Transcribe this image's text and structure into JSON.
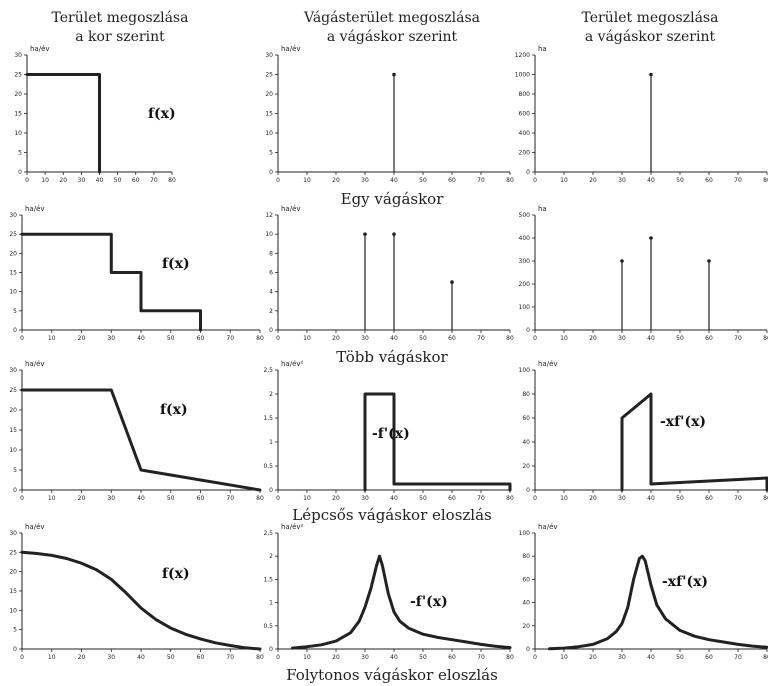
{
  "column_titles": [
    {
      "line1": "Terület megoszlása",
      "line2": "a kor szerint"
    },
    {
      "line1": "Vágásterület megoszlása",
      "line2": "a vágáskor szerint"
    },
    {
      "line1": "Terület megoszlása",
      "line2": "a vágáskor szerint"
    }
  ],
  "row_labels": [
    "Egy vágáskor",
    "Több vágáskor",
    "Lépcsős vágáskor eloszlás",
    "Folytonos vágáskor eloszlás"
  ],
  "chart_data": [
    {
      "id": "r1c1",
      "type": "line",
      "ylabel": "ha/év",
      "xlim": [
        0,
        80
      ],
      "ylim": [
        0,
        30
      ],
      "yticks": [
        0,
        5,
        10,
        15,
        20,
        25,
        30
      ],
      "xticks": [
        0,
        10,
        20,
        30,
        40,
        50,
        60,
        70,
        80
      ],
      "annotation": "f(x)",
      "x": [
        0,
        40,
        40
      ],
      "y": [
        25,
        25,
        0
      ]
    },
    {
      "id": "r1c2",
      "type": "stem",
      "ylabel": "ha/év",
      "xlim": [
        0,
        80
      ],
      "ylim": [
        0,
        30
      ],
      "yticks": [
        0,
        5,
        10,
        15,
        20,
        25,
        30
      ],
      "xticks": [
        0,
        10,
        20,
        30,
        40,
        50,
        60,
        70,
        80
      ],
      "x": [
        40
      ],
      "y": [
        25
      ]
    },
    {
      "id": "r1c3",
      "type": "stem",
      "ylabel": "ha",
      "xlim": [
        0,
        80
      ],
      "ylim": [
        0,
        1200
      ],
      "yticks": [
        0,
        200,
        400,
        600,
        800,
        1000,
        1200
      ],
      "xticks": [
        0,
        10,
        20,
        30,
        40,
        50,
        60,
        70,
        80
      ],
      "x": [
        40
      ],
      "y": [
        1000
      ]
    },
    {
      "id": "r2c1",
      "type": "line",
      "ylabel": "ha/év",
      "xlim": [
        0,
        80
      ],
      "ylim": [
        0,
        30
      ],
      "yticks": [
        0,
        5,
        10,
        15,
        20,
        25,
        30
      ],
      "xticks": [
        0,
        10,
        20,
        30,
        40,
        50,
        60,
        70,
        80
      ],
      "annotation": "f(x)",
      "x": [
        0,
        30,
        30,
        40,
        40,
        60,
        60
      ],
      "y": [
        25,
        25,
        15,
        15,
        5,
        5,
        0
      ]
    },
    {
      "id": "r2c2",
      "type": "stem",
      "ylabel": "ha/év",
      "xlim": [
        0,
        80
      ],
      "ylim": [
        0,
        12
      ],
      "yticks": [
        0,
        2,
        4,
        6,
        8,
        10,
        12
      ],
      "xticks": [
        0,
        10,
        20,
        30,
        40,
        50,
        60,
        70,
        80
      ],
      "x": [
        30,
        40,
        60
      ],
      "y": [
        10,
        10,
        5
      ]
    },
    {
      "id": "r2c3",
      "type": "stem",
      "ylabel": "ha",
      "xlim": [
        0,
        80
      ],
      "ylim": [
        0,
        500
      ],
      "yticks": [
        0,
        100,
        200,
        300,
        400,
        500
      ],
      "xticks": [
        0,
        10,
        20,
        30,
        40,
        50,
        60,
        70,
        80
      ],
      "x": [
        30,
        40,
        60
      ],
      "y": [
        300,
        400,
        300
      ]
    },
    {
      "id": "r3c1",
      "type": "line",
      "ylabel": "ha/év",
      "xlim": [
        0,
        80
      ],
      "ylim": [
        0,
        30
      ],
      "yticks": [
        0,
        5,
        10,
        15,
        20,
        25,
        30
      ],
      "xticks": [
        0,
        10,
        20,
        30,
        40,
        50,
        60,
        70,
        80
      ],
      "annotation": "f(x)",
      "x": [
        0,
        30,
        40,
        80
      ],
      "y": [
        25,
        25,
        5,
        0
      ]
    },
    {
      "id": "r3c2",
      "type": "line",
      "ylabel": "ha/év²",
      "xlim": [
        0,
        80
      ],
      "ylim": [
        0,
        2.5
      ],
      "yticks": [
        0,
        0.5,
        1,
        1.5,
        2,
        2.5
      ],
      "ytick_labels": [
        "0",
        "0,5",
        "1",
        "1,5",
        "2",
        "2,5"
      ],
      "xticks": [
        0,
        10,
        20,
        30,
        40,
        50,
        60,
        70,
        80
      ],
      "annotation": "-f'(x)",
      "x": [
        30,
        30,
        40,
        40,
        80,
        80
      ],
      "y": [
        0,
        2,
        2,
        0.125,
        0.125,
        0
      ]
    },
    {
      "id": "r3c3",
      "type": "line",
      "ylabel": "ha/év",
      "xlim": [
        0,
        80
      ],
      "ylim": [
        0,
        100
      ],
      "yticks": [
        0,
        20,
        40,
        60,
        80,
        100
      ],
      "xticks": [
        0,
        10,
        20,
        30,
        40,
        50,
        60,
        70,
        80
      ],
      "annotation": "-xf'(x)",
      "x": [
        30,
        30,
        40,
        40,
        80,
        80
      ],
      "y": [
        0,
        60,
        80,
        5,
        10,
        0
      ]
    },
    {
      "id": "r4c1",
      "type": "line",
      "ylabel": "ha/év",
      "xlim": [
        0,
        80
      ],
      "ylim": [
        0,
        30
      ],
      "yticks": [
        0,
        5,
        10,
        15,
        20,
        25,
        30
      ],
      "xticks": [
        0,
        10,
        20,
        30,
        40,
        50,
        60,
        70,
        80
      ],
      "annotation": "f(x)",
      "x": [
        0,
        5,
        10,
        15,
        20,
        25,
        30,
        35,
        40,
        45,
        50,
        55,
        60,
        65,
        70,
        75,
        80
      ],
      "y": [
        25,
        24.7,
        24.2,
        23.4,
        22.2,
        20.5,
        18,
        14.5,
        10.6,
        7.6,
        5.4,
        3.8,
        2.6,
        1.6,
        0.9,
        0.3,
        0
      ]
    },
    {
      "id": "r4c2",
      "type": "line",
      "ylabel": "ha/év²",
      "xlim": [
        0,
        80
      ],
      "ylim": [
        0,
        2.5
      ],
      "yticks": [
        0,
        0.5,
        1,
        1.5,
        2,
        2.5
      ],
      "ytick_labels": [
        "0",
        "0,5",
        "1",
        "1,5",
        "2",
        "2,5"
      ],
      "xticks": [
        0,
        10,
        20,
        30,
        40,
        50,
        60,
        70,
        80
      ],
      "annotation": "-f'(x)",
      "x": [
        5,
        10,
        15,
        20,
        25,
        28,
        30,
        32,
        34,
        35,
        36,
        38,
        40,
        42,
        45,
        50,
        55,
        60,
        65,
        70,
        75,
        80
      ],
      "y": [
        0.02,
        0.05,
        0.09,
        0.17,
        0.35,
        0.6,
        0.9,
        1.3,
        1.8,
        2,
        1.8,
        1.2,
        0.8,
        0.6,
        0.45,
        0.32,
        0.25,
        0.2,
        0.15,
        0.1,
        0.06,
        0.03
      ]
    },
    {
      "id": "r4c3",
      "type": "line",
      "ylabel": "ha/év",
      "xlim": [
        0,
        80
      ],
      "ylim": [
        0,
        100
      ],
      "yticks": [
        0,
        20,
        40,
        60,
        80,
        100
      ],
      "xticks": [
        0,
        10,
        20,
        30,
        40,
        50,
        60,
        70,
        80
      ],
      "annotation": "-xf'(x)",
      "x": [
        5,
        10,
        15,
        20,
        25,
        28,
        30,
        32,
        34,
        36,
        37,
        38,
        40,
        42,
        45,
        50,
        55,
        60,
        65,
        70,
        75,
        80
      ],
      "y": [
        0.2,
        0.8,
        2,
        4,
        9,
        15,
        22,
        36,
        60,
        78,
        80,
        76,
        55,
        38,
        26,
        16,
        11,
        8,
        6,
        4,
        2.5,
        1.5
      ]
    }
  ]
}
